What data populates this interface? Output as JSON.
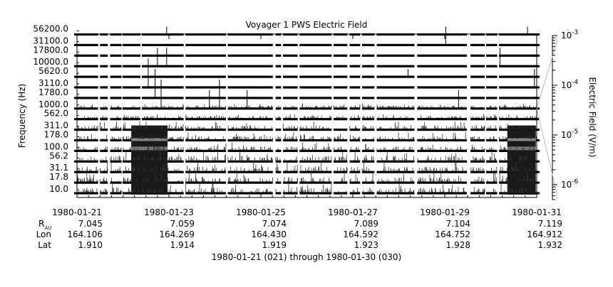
{
  "chart_data": {
    "type": "heatmap",
    "title": "Voyager 1 PWS Electric Field",
    "ylabel": "Frequency (Hz)",
    "colorbar_label": "Electric Field (V/m)",
    "xlabel": "1980-01-21 (021) through 1980-01-30 (030)",
    "frequency_channels": [
      "10.0",
      "17.8",
      "31.1",
      "56.2",
      "100.0",
      "178.0",
      "311.0",
      "562.0",
      "1000.0",
      "1780.0",
      "3110.0",
      "5620.0",
      "10000.0",
      "17800.0",
      "31100.0",
      "56200.0"
    ],
    "x_ticks": [
      "1980-01-21",
      "1980-01-23",
      "1980-01-25",
      "1980-01-27",
      "1980-01-29",
      "1980-01-31"
    ],
    "xlim": [
      "1980-01-21",
      "1980-01-31"
    ],
    "colorbar": {
      "scale": "log",
      "range": [
        5e-07,
        0.001
      ],
      "ticks": [
        {
          "value": 1e-06,
          "base": "10",
          "exp": "-6"
        },
        {
          "value": 1e-05,
          "base": "10",
          "exp": "-5"
        },
        {
          "value": 0.0001,
          "base": "10",
          "exp": "-4"
        },
        {
          "value": 0.001,
          "base": "10",
          "exp": "-3"
        }
      ]
    },
    "ephemeris": {
      "rows": [
        {
          "label": "R",
          "sub": "AU",
          "values": [
            "7.045",
            "7.059",
            "7.074",
            "7.089",
            "7.104",
            "7.119"
          ]
        },
        {
          "label": "Lon",
          "sub": "",
          "values": [
            "164.106",
            "164.269",
            "164.430",
            "164.592",
            "164.752",
            "164.912"
          ]
        },
        {
          "label": "Lat",
          "sub": "",
          "values": [
            "1.910",
            "1.914",
            "1.919",
            "1.923",
            "1.928",
            "1.932"
          ]
        }
      ]
    },
    "data_gaps_days": [
      [
        0.46,
        0.5
      ],
      [
        0.67,
        0.72
      ],
      [
        0.97,
        0.99
      ],
      [
        1.38,
        1.41
      ],
      [
        2.32,
        2.36
      ],
      [
        3.24,
        3.28
      ],
      [
        4.26,
        4.32
      ],
      [
        4.44,
        4.48
      ],
      [
        4.8,
        4.84
      ],
      [
        5.54,
        5.58
      ],
      [
        5.88,
        5.93
      ],
      [
        6.16,
        6.2
      ],
      [
        6.47,
        6.52
      ],
      [
        7.34,
        7.4
      ],
      [
        8.48,
        8.56
      ],
      [
        8.87,
        8.9
      ],
      [
        9.14,
        9.18
      ]
    ],
    "enhanced_intervals_days": [
      [
        1.18,
        1.97
      ],
      [
        9.36,
        9.98
      ]
    ],
    "spikes": [
      {
        "day": 1.95,
        "channel": "56200.0",
        "top": "56200.0"
      },
      {
        "day": 1.75,
        "channel": "10000.0",
        "top": "17800.0"
      },
      {
        "day": 1.95,
        "channel": "10000.0",
        "top": "17800.0"
      },
      {
        "day": 1.55,
        "channel": "3110.0",
        "top": "10000.0"
      },
      {
        "day": 1.7,
        "channel": "1780.0",
        "top": "5620.0"
      },
      {
        "day": 1.83,
        "channel": "1000.0",
        "top": "3110.0"
      },
      {
        "day": 2.88,
        "channel": "1000.0",
        "top": "1780.0"
      },
      {
        "day": 3.1,
        "channel": "1000.0",
        "top": "3110.0"
      },
      {
        "day": 3.7,
        "channel": "1000.0",
        "top": "1780.0"
      },
      {
        "day": 7.2,
        "channel": "5620.0",
        "top": "5620.0"
      },
      {
        "day": 8.3,
        "channel": "1000.0",
        "top": "1780.0"
      },
      {
        "day": 9.2,
        "channel": "10000.0",
        "top": "17800.0"
      },
      {
        "day": 9.8,
        "channel": "56200.0",
        "top": "56200.0"
      },
      {
        "day": 8.02,
        "channel": "31100.0",
        "top": "56200.0"
      },
      {
        "day": 9.95,
        "channel": "3110.0",
        "top": "5620.0"
      }
    ]
  }
}
